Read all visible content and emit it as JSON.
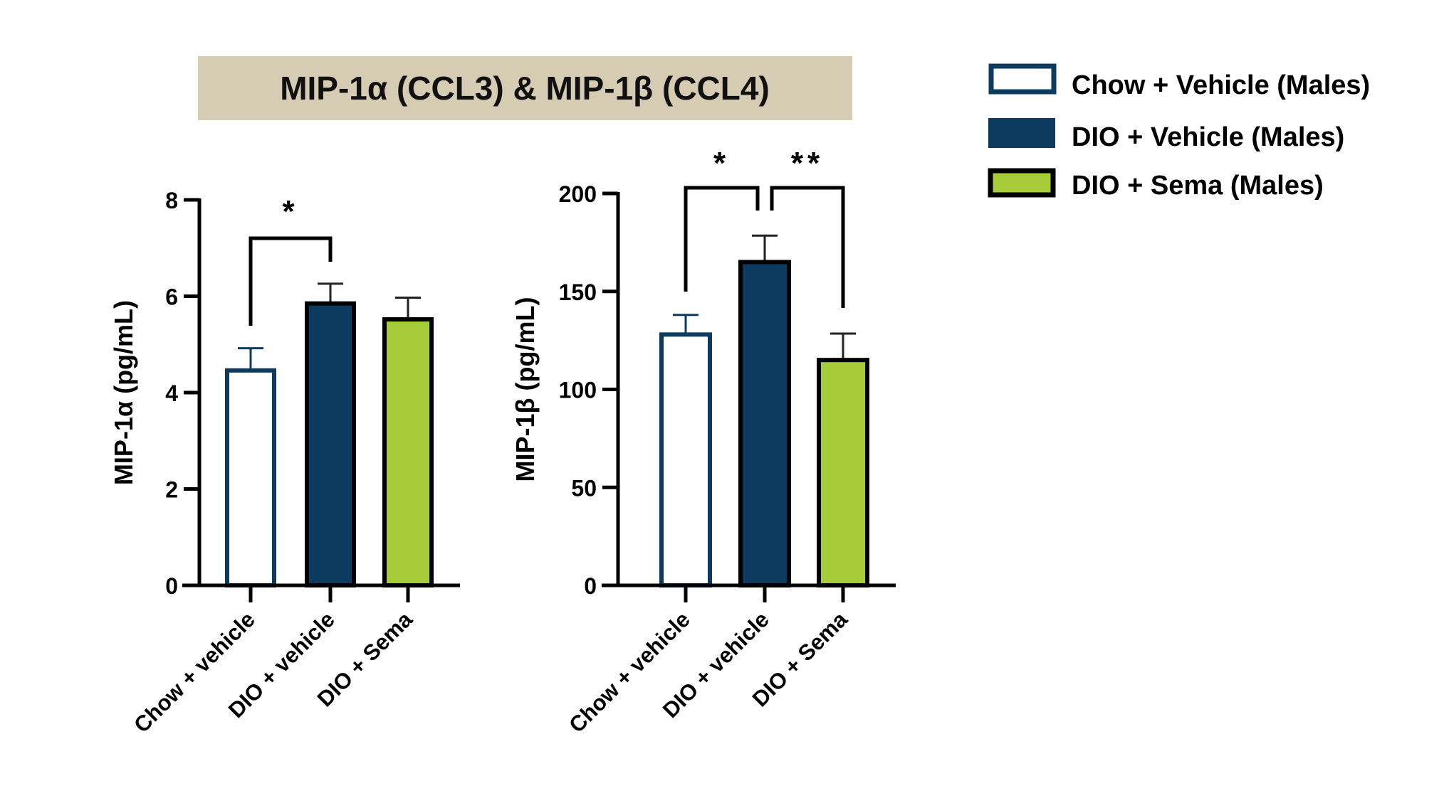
{
  "title": "MIP-1α (CCL3) & MIP-1β (CCL4)",
  "colors": {
    "chow_vehicle_fill": "#ffffff",
    "chow_vehicle_edge": "#0d3b60",
    "dio_vehicle": "#0d3b60",
    "dio_sema": "#a6cc3a",
    "title_bg": "#d6ccb4"
  },
  "legend": {
    "placement": "right",
    "items": [
      {
        "label": "Chow + Vehicle (Males)"
      },
      {
        "label": "DIO + Vehicle (Males)"
      },
      {
        "label": "DIO + Sema (Males)"
      }
    ]
  },
  "chart_data": [
    {
      "type": "bar",
      "ylabel": "MIP-1α (pg/mL)",
      "ylim": [
        0,
        8
      ],
      "yticks": [
        "0",
        "2",
        "4",
        "6",
        "8"
      ],
      "categories": [
        "Chow + vehicle",
        "DIO + vehicle",
        "DIO + Sema"
      ],
      "values": [
        4.46,
        5.85,
        5.52
      ],
      "error_upper": [
        4.92,
        6.26,
        5.97
      ],
      "grid": false,
      "significance": [
        {
          "from": 0,
          "to": 1,
          "label": "*"
        }
      ]
    },
    {
      "type": "bar",
      "ylabel": "MIP-1β (pg/mL)",
      "ylim": [
        0,
        200
      ],
      "yticks": [
        "0",
        "50",
        "100",
        "150",
        "200"
      ],
      "categories": [
        "Chow + vehicle",
        "DIO + vehicle",
        "DIO + Sema"
      ],
      "values": [
        128,
        165,
        115
      ],
      "error_upper": [
        138,
        178.5,
        128.5
      ],
      "grid": false,
      "significance": [
        {
          "from": 0,
          "to": 1,
          "label": "*"
        },
        {
          "from": 1,
          "to": 2,
          "label": "**"
        }
      ]
    }
  ]
}
